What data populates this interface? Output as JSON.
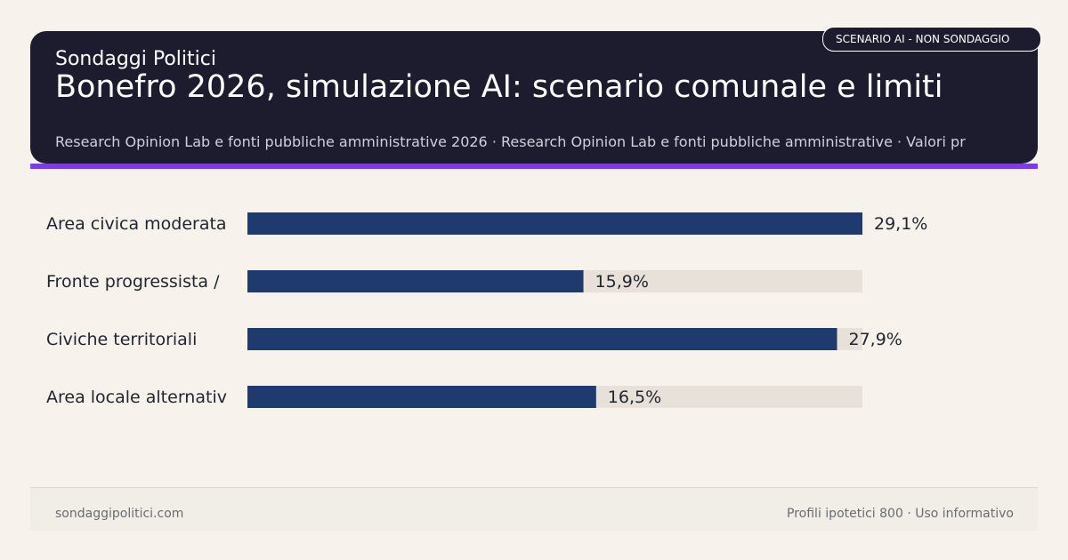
{
  "header": {
    "brand": "Sondaggi Politici",
    "title": "Bonefro 2026, simulazione AI: scenario comunale e limiti",
    "subtitle": "Research Opinion Lab e fonti pubbliche amministrative 2026 · Research Opinion Lab e fonti pubbliche amministrative · Valori pr",
    "badge": "SCENARIO AI - NON SONDAGGIO"
  },
  "colors": {
    "header_bg": "#1c1c2e",
    "accent": "#7c3aed",
    "bar": "#1e3a6e",
    "track": "#e8e1da",
    "page_bg": "#f7f3ec"
  },
  "chart_data": {
    "type": "bar",
    "orientation": "horizontal",
    "categories": [
      "Area civica moderata",
      "Fronte progressista /",
      "Civiche territoriali",
      "Area locale alternativ"
    ],
    "values": [
      29.1,
      15.9,
      27.9,
      16.5
    ],
    "value_labels": [
      "29,1%",
      "15,9%",
      "27,9%",
      "16,5%"
    ],
    "xlim": [
      0,
      29.1
    ],
    "grid": false,
    "legend": "none"
  },
  "footer": {
    "left": "sondaggipolitici.com",
    "right": "Profili ipotetici 800 · Uso informativo"
  }
}
